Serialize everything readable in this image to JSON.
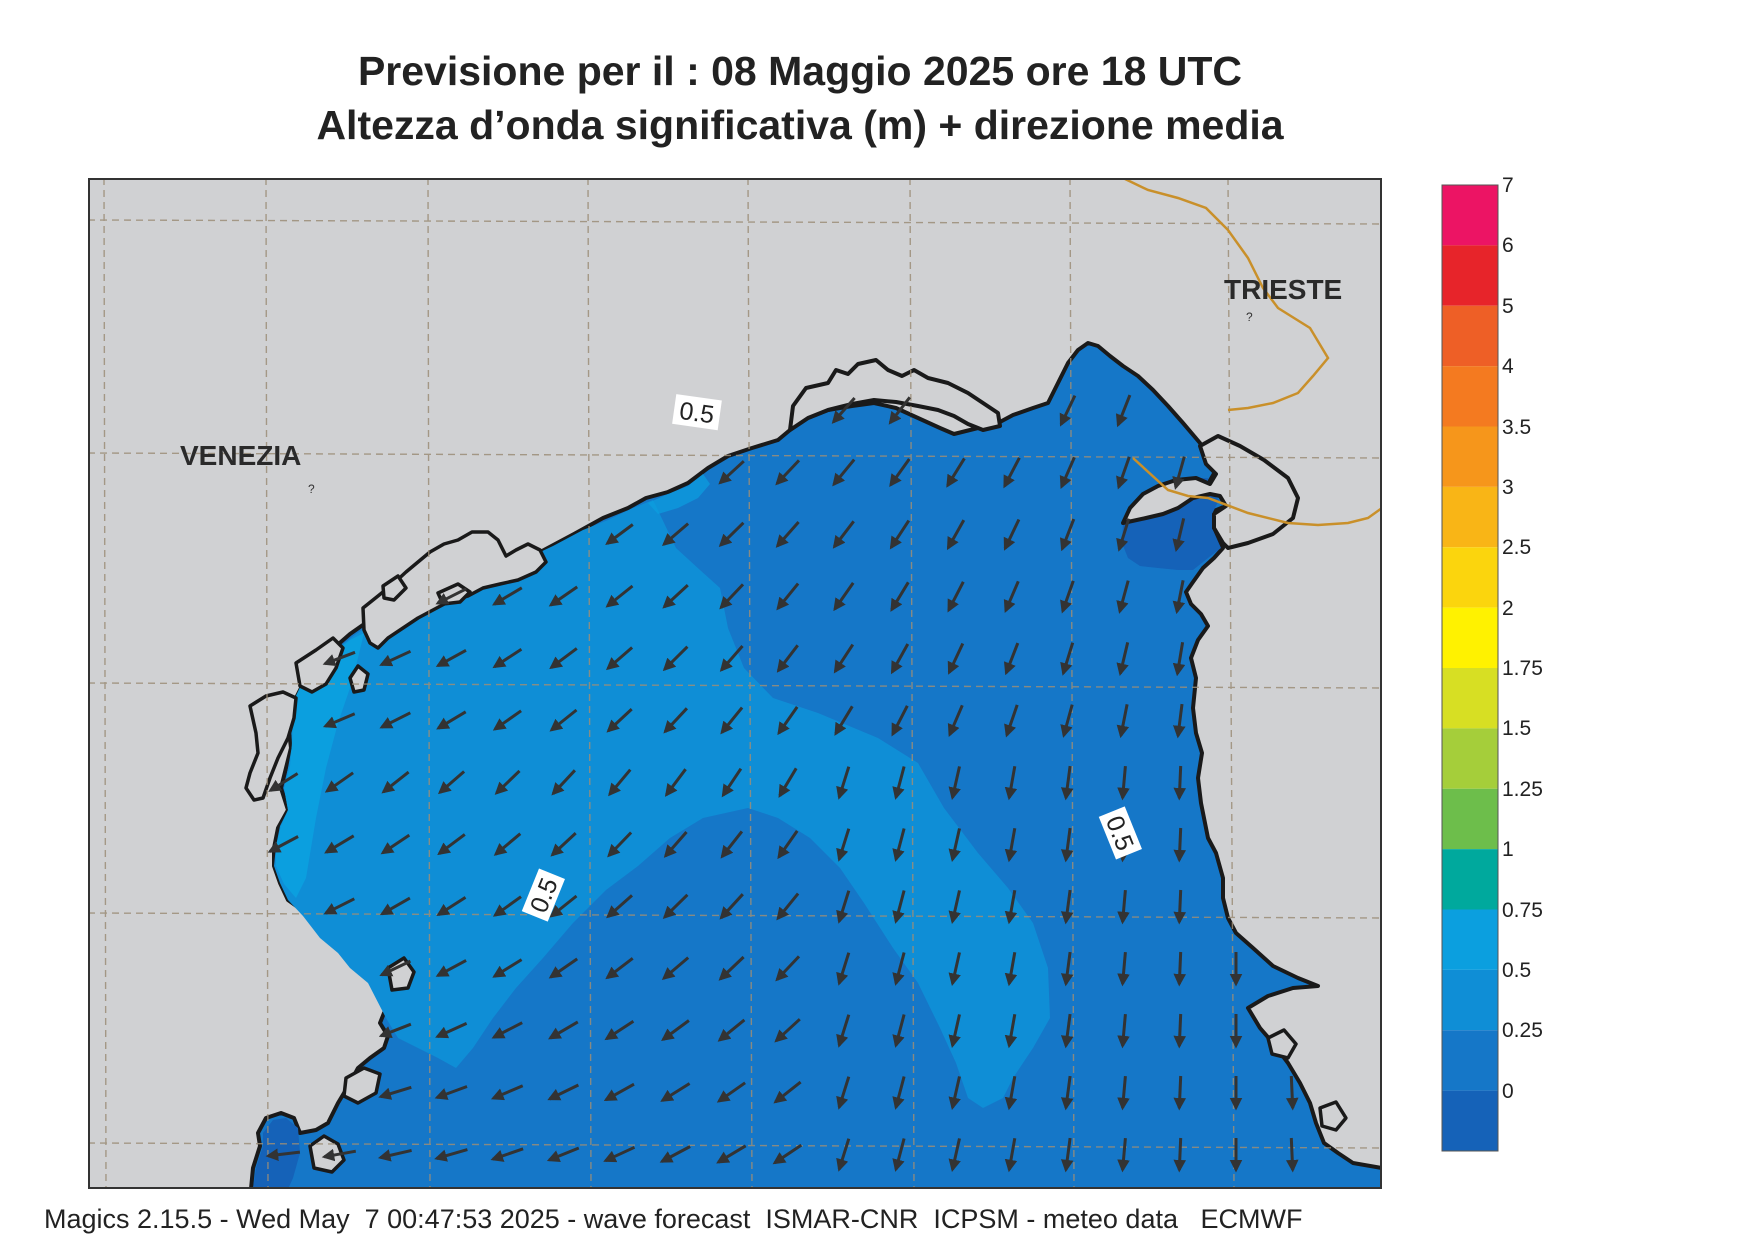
{
  "title": {
    "line1": "Previsione per il  :  08   Maggio  2025   ore 18 UTC",
    "line2": "Altezza d’onda significativa (m) + direzione media"
  },
  "cities": {
    "venezia": "VENEZIA",
    "trieste": "TRIESTE"
  },
  "contour_labels": [
    "0.5",
    "0.5",
    "0.5"
  ],
  "legend": {
    "ticks": [
      "7",
      "6",
      "5",
      "4",
      "3.5",
      "3",
      "2.5",
      "2",
      "1.75",
      "1.5",
      "1.25",
      "1",
      "0.75",
      "0.5",
      "0.25",
      "0"
    ],
    "colors": [
      "#ec1464",
      "#e7242a",
      "#ee5f26",
      "#f47a20",
      "#f6961b",
      "#f9b516",
      "#fbd50d",
      "#fff200",
      "#d7df23",
      "#a5ce3a",
      "#6dbe4b",
      "#00a99d",
      "#0b9fdf",
      "#0f8ed6",
      "#1577c8",
      "#1562b8"
    ]
  },
  "colors": {
    "land": "#d0d1d3",
    "sea_low": "#1562b8",
    "sea_mid": "#1577c8",
    "sea_high": "#0f8ed6",
    "sea_highest": "#0b9fdf",
    "border": "#c9902a",
    "arrow": "#333333",
    "coast": "#1a1a1a"
  },
  "footer": "Magics 2.15.5 - Wed May  7 00:47:53 2025 - wave forecast  ISMAR-CNR  ICPSM - meteo data   ECMWF"
}
